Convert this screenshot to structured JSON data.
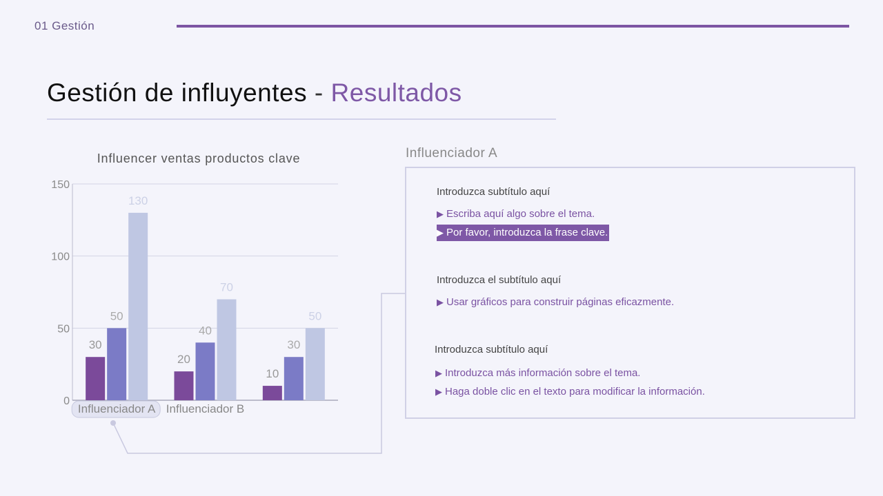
{
  "header": {
    "section": "01 Gestión"
  },
  "title": {
    "main": "Gestión de influyentes",
    "separator": "-",
    "accent": "Resultados"
  },
  "colors": {
    "accent": "#7e58a6",
    "series": [
      "#7b4a9a",
      "#7b7bc6",
      "#bfc7e3"
    ]
  },
  "chart_data": {
    "type": "bar",
    "title": "Influencer ventas productos clave",
    "categories": [
      "Influenciador A",
      "Influenciador B",
      ""
    ],
    "series": [
      {
        "values": [
          30,
          20,
          10
        ]
      },
      {
        "values": [
          50,
          40,
          30
        ]
      },
      {
        "values": [
          130,
          70,
          50
        ]
      }
    ],
    "ylim": [
      0,
      150
    ],
    "yticks": [
      0,
      50,
      100,
      150
    ],
    "grid": true
  },
  "panel": {
    "label": "Influenciador A",
    "groups": [
      {
        "subtitle": "Introduzca subtítulo aquí",
        "bullets": [
          "Escriba aquí algo sobre el tema.",
          "Por favor, introduzca la frase clave."
        ]
      },
      {
        "subtitle": "Introduzca el subtítulo aquí",
        "bullets": [
          "Usar gráficos para construir páginas eficazmente."
        ]
      },
      {
        "subtitle": "Introduzca subtítulo aquí",
        "bullets": [
          "Introduzca más información sobre el tema.",
          "Haga doble clic en el texto para modificar la información."
        ]
      }
    ]
  }
}
